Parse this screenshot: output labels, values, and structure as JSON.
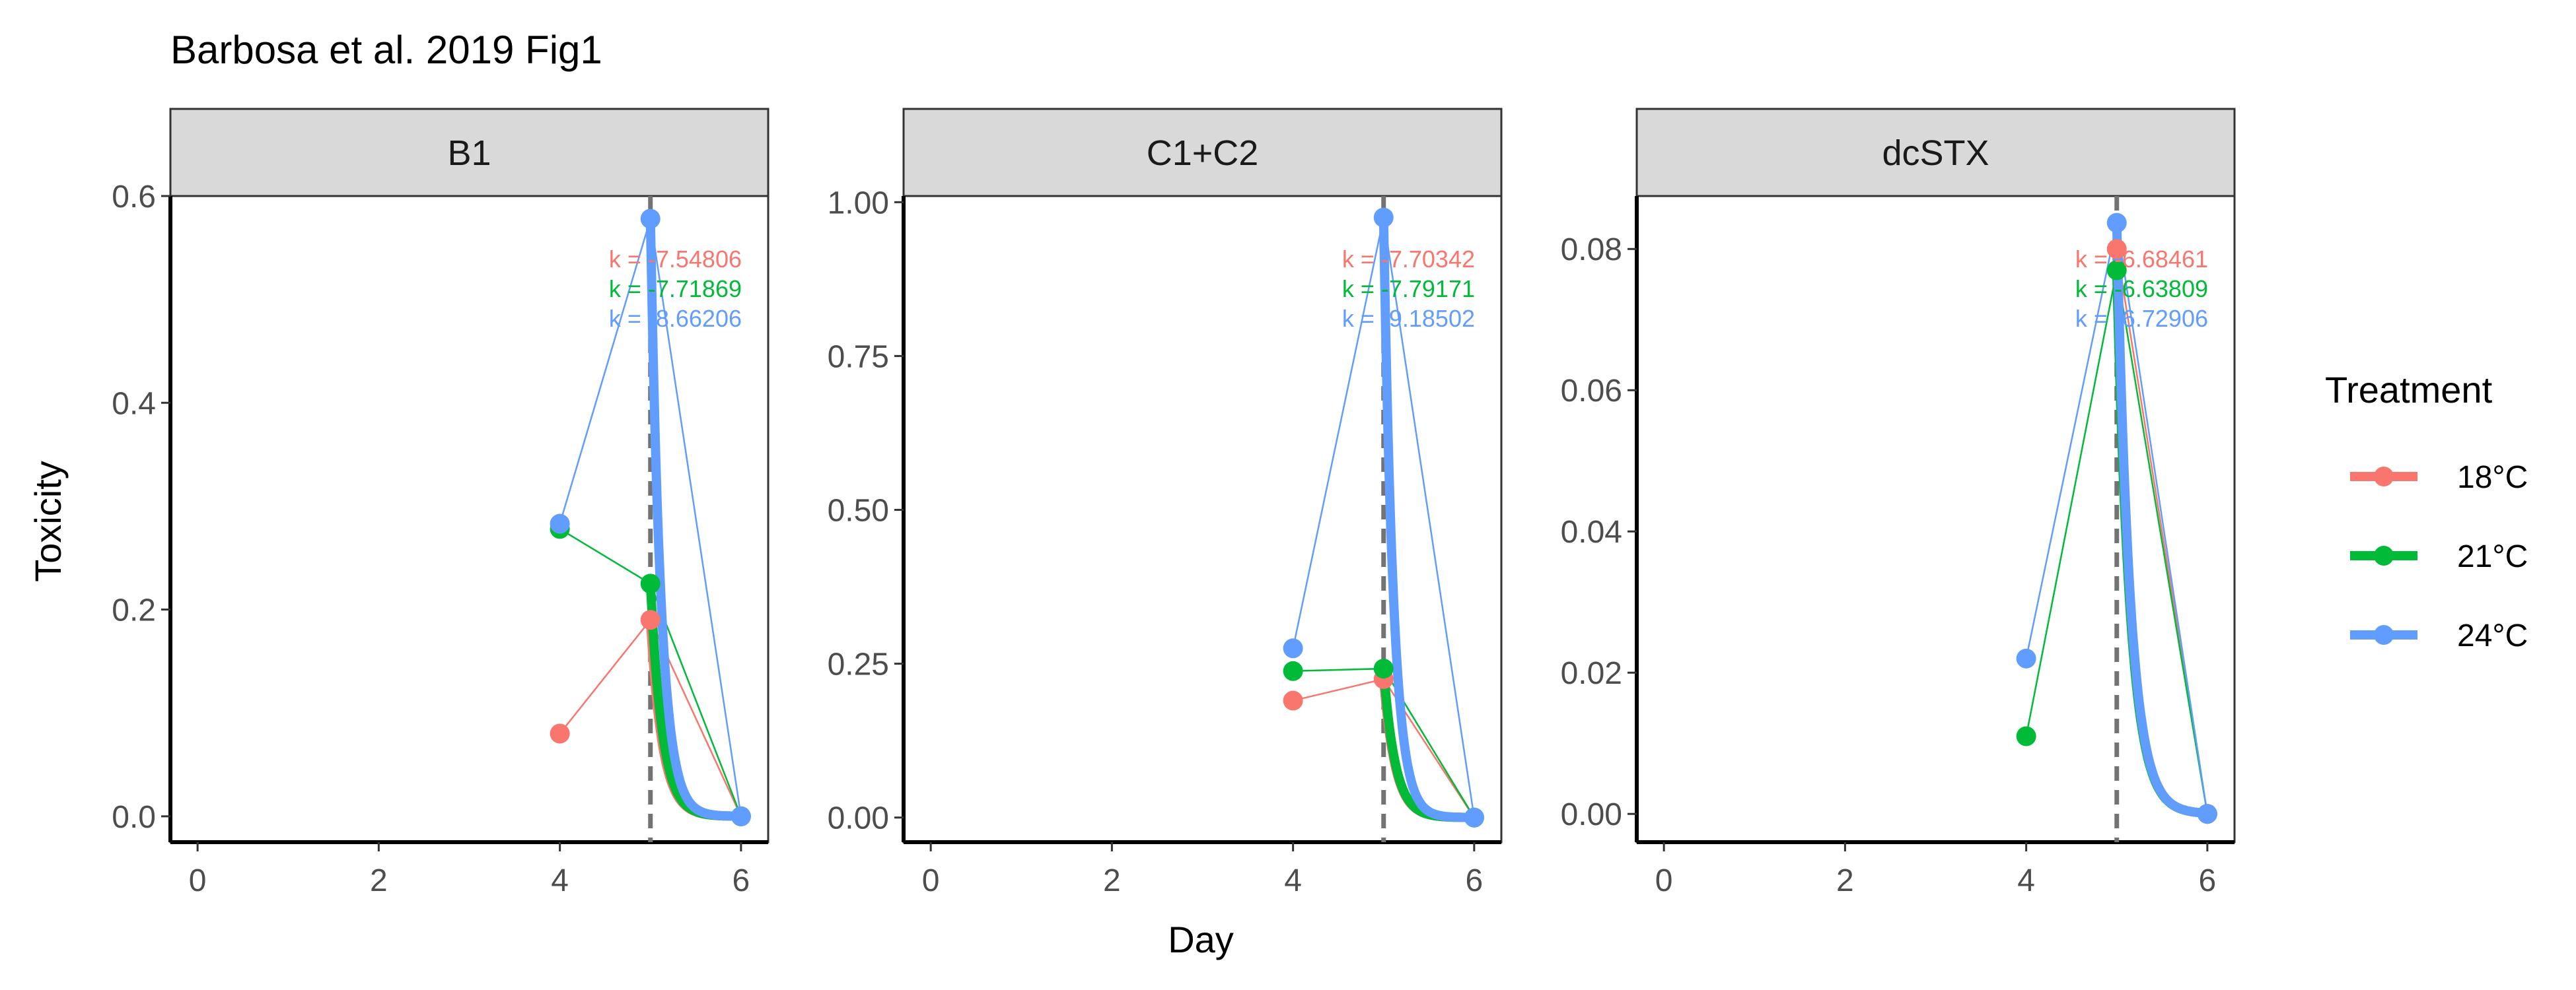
{
  "chart_data": {
    "type": "line",
    "title": "Barbosa et al. 2019 Fig1",
    "xlabel": "Day",
    "ylabel": "Toxicity",
    "xlim": [
      -0.3,
      6.3
    ],
    "xticks": [
      0,
      2,
      4,
      6
    ],
    "vline_x": 5,
    "grid": false,
    "legend": {
      "title": "Treatment",
      "position": "right",
      "entries": [
        {
          "name": "18°C",
          "color": "#F8766D"
        },
        {
          "name": "21°C",
          "color": "#00BA38"
        },
        {
          "name": "24°C",
          "color": "#619CFF"
        }
      ]
    },
    "panels": [
      {
        "strip": "B1",
        "ylim": [
          -0.025,
          0.6
        ],
        "yticks": [
          0.0,
          0.2,
          0.4,
          0.6
        ],
        "ytick_labels": [
          "0.0",
          "0.2",
          "0.4",
          "0.6"
        ],
        "series": [
          {
            "name": "18°C",
            "x": [
              4,
              5,
              6
            ],
            "y": [
              0.08,
              0.19,
              0.0
            ],
            "fit_start": 0.19,
            "k_label": "k = -7.54806",
            "k": -7.54806
          },
          {
            "name": "21°C",
            "x": [
              4,
              5,
              6
            ],
            "y": [
              0.278,
              0.225,
              0.0
            ],
            "fit_start": 0.225,
            "k_label": "k = -7.71869",
            "k": -7.71869
          },
          {
            "name": "24°C",
            "x": [
              4,
              5,
              6
            ],
            "y": [
              0.283,
              0.578,
              0.0
            ],
            "fit_start": 0.578,
            "k_label": "k = -8.66206",
            "k": -8.66206
          }
        ]
      },
      {
        "strip": "C1+C2",
        "ylim": [
          -0.04,
          1.01
        ],
        "yticks": [
          0.0,
          0.25,
          0.5,
          0.75,
          1.0
        ],
        "ytick_labels": [
          "0.00",
          "0.25",
          "0.50",
          "0.75",
          "1.00"
        ],
        "series": [
          {
            "name": "18°C",
            "x": [
              4,
              5,
              6
            ],
            "y": [
              0.19,
              0.225,
              0.0
            ],
            "fit_start": 0.225,
            "k_label": "k = -7.70342",
            "k": -7.70342
          },
          {
            "name": "21°C",
            "x": [
              4,
              5,
              6
            ],
            "y": [
              0.238,
              0.242,
              0.0
            ],
            "fit_start": 0.242,
            "k_label": "k = -7.79171",
            "k": -7.79171
          },
          {
            "name": "24°C",
            "x": [
              4,
              5,
              6
            ],
            "y": [
              0.275,
              0.975,
              0.0
            ],
            "fit_start": 0.975,
            "k_label": "k = -9.18502",
            "k": -9.18502
          }
        ]
      },
      {
        "strip": "dcSTX",
        "ylim": [
          -0.004,
          0.0875
        ],
        "yticks": [
          0.0,
          0.02,
          0.04,
          0.06,
          0.08
        ],
        "ytick_labels": [
          "0.00",
          "0.02",
          "0.04",
          "0.06",
          "0.08"
        ],
        "series": [
          {
            "name": "18°C",
            "x": [
              5,
              6
            ],
            "y": [
              0.08,
              0.0
            ],
            "fit_start": 0.08,
            "k_label": "k = -6.68461",
            "k": -6.68461
          },
          {
            "name": "21°C",
            "x": [
              4,
              5,
              6
            ],
            "y": [
              0.011,
              0.077,
              0.0
            ],
            "fit_start": 0.077,
            "k_label": "k = -6.63809",
            "k": -6.63809
          },
          {
            "name": "24°C",
            "x": [
              4,
              5,
              6
            ],
            "y": [
              0.022,
              0.0837,
              0.0
            ],
            "fit_start": 0.0837,
            "k_label": "k = -6.72906",
            "k": -6.72906
          }
        ]
      }
    ]
  }
}
